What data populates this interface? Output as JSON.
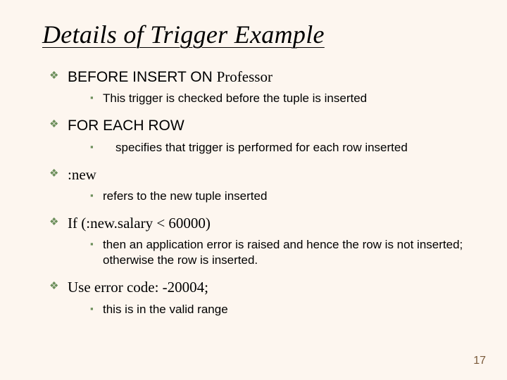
{
  "title": "Details of Trigger Example",
  "bullets": {
    "diamond": "❖",
    "square": "▪",
    "diamond_color": "#6b8e5a",
    "square_color": "#6b8e5a"
  },
  "items": [
    {
      "main_prefix": "BEFORE INSERT ON ",
      "main_suffix": "Professor",
      "sub": "This trigger is checked before the tuple is inserted",
      "sub_indented": false
    },
    {
      "main_prefix": "FOR EACH ROW",
      "main_suffix": "",
      "sub": "specifies that trigger is performed for each row inserted",
      "sub_indented": true
    },
    {
      "main_prefix": "",
      "main_suffix": ":new",
      "sub": "refers to the new tuple inserted",
      "sub_indented": false
    },
    {
      "main_prefix": "",
      "main_suffix": "If (:new.salary < 60000)",
      "sub": "then an application error is raised and hence the row is not inserted; otherwise the row is inserted.",
      "sub_indented": false
    },
    {
      "main_prefix": "",
      "main_suffix": "Use error code: -20004;",
      "sub": "this is in the valid range",
      "sub_indented": false
    }
  ],
  "page_number": "17",
  "colors": {
    "background": "#fdf6ef",
    "text": "#000000",
    "page_num": "#7a5a3a"
  },
  "typography": {
    "title_fontsize": 36,
    "title_style": "italic underline",
    "level1_fontsize": 21,
    "level2_fontsize": 17,
    "title_font": "Times New Roman",
    "body_font_sans": "Arial",
    "body_font_serif": "Times New Roman"
  }
}
